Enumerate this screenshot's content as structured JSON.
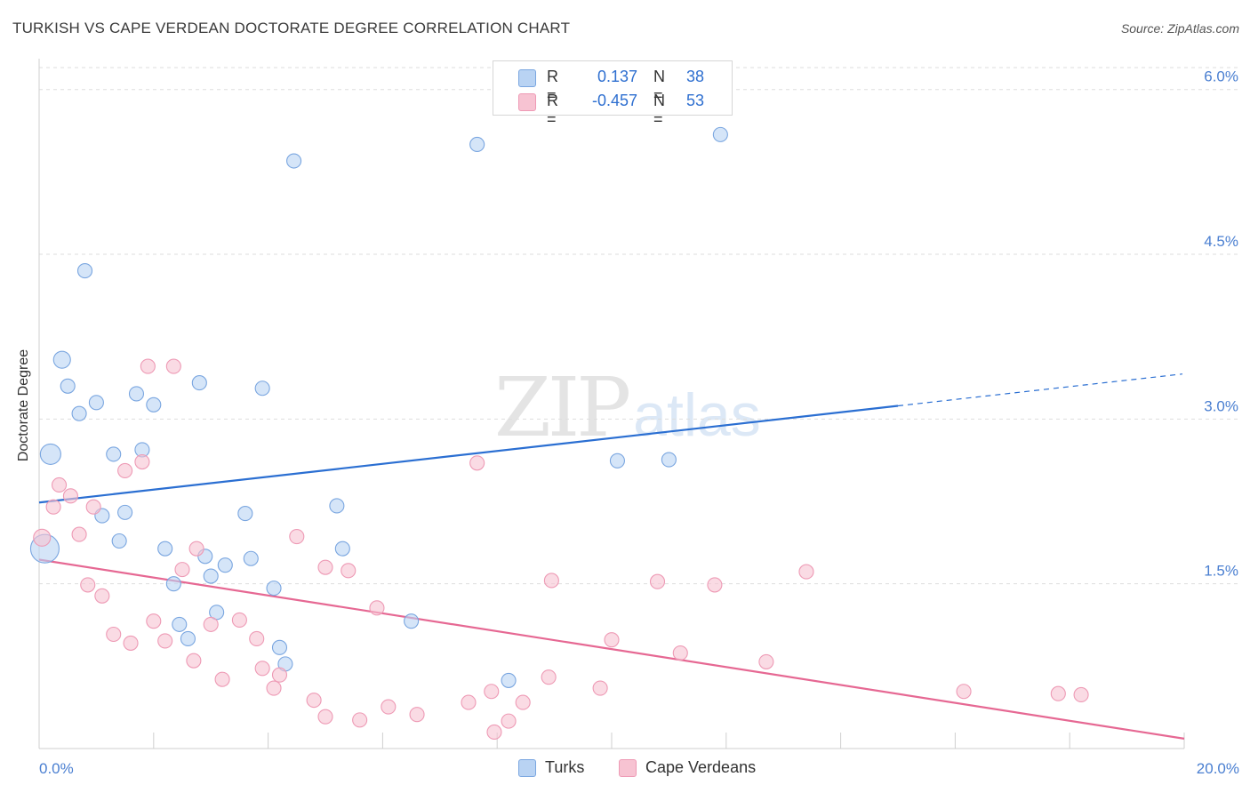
{
  "title": "TURKISH VS CAPE VERDEAN DOCTORATE DEGREE CORRELATION CHART",
  "source": "Source: ZipAtlas.com",
  "watermark": {
    "zip": "ZIP",
    "atlas": "atlas"
  },
  "colors": {
    "turks_fill": "#b9d3f3",
    "turks_stroke": "#7aa6e0",
    "turks_line": "#2b6fd2",
    "cape_fill": "#f7c3d2",
    "cape_stroke": "#ee9ab5",
    "cape_line": "#e66893",
    "tick_text": "#4a7fd1",
    "grid": "#dddddd"
  },
  "stats_legend": [
    {
      "r_label": "R =",
      "r_value": "0.137",
      "n_label": "N =",
      "n_value": "38",
      "color": "#b9d3f3",
      "border": "#7aa6e0"
    },
    {
      "r_label": "R =",
      "r_value": "-0.457",
      "n_label": "N =",
      "n_value": "53",
      "color": "#f7c3d2",
      "border": "#ee9ab5"
    }
  ],
  "legend": [
    {
      "label": "Turks",
      "color": "#b9d3f3",
      "border": "#7aa6e0"
    },
    {
      "label": "Cape Verdeans",
      "color": "#f7c3d2",
      "border": "#ee9ab5"
    }
  ],
  "chart_data": {
    "type": "scatter",
    "title": "TURKISH VS CAPE VERDEAN DOCTORATE DEGREE CORRELATION CHART",
    "xlabel": "",
    "ylabel": "Doctorate Degree",
    "xlim": [
      0,
      20
    ],
    "ylim": [
      0,
      6.2
    ],
    "x_tick_labels": [
      {
        "value": 0,
        "label": "0.0%"
      },
      {
        "value": 20,
        "label": "20.0%"
      }
    ],
    "y_tick_labels": [
      {
        "value": 1.5,
        "label": "1.5%"
      },
      {
        "value": 3.0,
        "label": "3.0%"
      },
      {
        "value": 4.5,
        "label": "4.5%"
      },
      {
        "value": 6.0,
        "label": "6.0%"
      }
    ],
    "legend_position": "bottom",
    "grid": true,
    "series": [
      {
        "name": "Turks",
        "trend": {
          "x0": 0,
          "y0": 2.24,
          "x1": 15.0,
          "y1": 3.12,
          "x_dash_end": 20,
          "y_dash_end": 3.41
        },
        "points": [
          {
            "x": 0.1,
            "y": 1.82,
            "s": 3
          },
          {
            "x": 0.2,
            "y": 2.68,
            "s": 2
          },
          {
            "x": 0.4,
            "y": 3.54,
            "s": 1.5
          },
          {
            "x": 0.5,
            "y": 3.3,
            "s": 1
          },
          {
            "x": 0.7,
            "y": 3.05,
            "s": 1
          },
          {
            "x": 0.8,
            "y": 4.35,
            "s": 1
          },
          {
            "x": 1.0,
            "y": 3.15,
            "s": 1
          },
          {
            "x": 1.1,
            "y": 2.12,
            "s": 1
          },
          {
            "x": 1.3,
            "y": 2.68,
            "s": 1
          },
          {
            "x": 1.4,
            "y": 1.89,
            "s": 1
          },
          {
            "x": 1.5,
            "y": 2.15,
            "s": 1
          },
          {
            "x": 1.7,
            "y": 3.23,
            "s": 1
          },
          {
            "x": 1.8,
            "y": 2.72,
            "s": 1
          },
          {
            "x": 2.0,
            "y": 3.13,
            "s": 1
          },
          {
            "x": 2.2,
            "y": 1.82,
            "s": 1
          },
          {
            "x": 2.35,
            "y": 1.5,
            "s": 1
          },
          {
            "x": 2.45,
            "y": 1.13,
            "s": 1
          },
          {
            "x": 2.6,
            "y": 1.0,
            "s": 1
          },
          {
            "x": 2.8,
            "y": 3.33,
            "s": 1
          },
          {
            "x": 2.9,
            "y": 1.75,
            "s": 1
          },
          {
            "x": 3.0,
            "y": 1.57,
            "s": 1
          },
          {
            "x": 3.1,
            "y": 1.24,
            "s": 1
          },
          {
            "x": 3.25,
            "y": 1.67,
            "s": 1
          },
          {
            "x": 3.6,
            "y": 2.14,
            "s": 1
          },
          {
            "x": 3.7,
            "y": 1.73,
            "s": 1
          },
          {
            "x": 3.9,
            "y": 3.28,
            "s": 1
          },
          {
            "x": 4.1,
            "y": 1.46,
            "s": 1
          },
          {
            "x": 4.2,
            "y": 0.92,
            "s": 1
          },
          {
            "x": 4.3,
            "y": 0.77,
            "s": 1
          },
          {
            "x": 4.45,
            "y": 5.35,
            "s": 1
          },
          {
            "x": 5.2,
            "y": 2.21,
            "s": 1
          },
          {
            "x": 5.3,
            "y": 1.82,
            "s": 1
          },
          {
            "x": 6.5,
            "y": 1.16,
            "s": 1
          },
          {
            "x": 7.65,
            "y": 5.5,
            "s": 1
          },
          {
            "x": 8.2,
            "y": 0.62,
            "s": 1
          },
          {
            "x": 10.1,
            "y": 2.62,
            "s": 1
          },
          {
            "x": 11.0,
            "y": 2.63,
            "s": 1
          },
          {
            "x": 11.9,
            "y": 5.59,
            "s": 1
          }
        ]
      },
      {
        "name": "Cape Verdeans",
        "trend": {
          "x0": 0,
          "y0": 1.72,
          "x1": 20,
          "y1": 0.09
        },
        "points": [
          {
            "x": 0.05,
            "y": 1.92,
            "s": 1.5
          },
          {
            "x": 0.25,
            "y": 2.2,
            "s": 1
          },
          {
            "x": 0.35,
            "y": 2.4,
            "s": 1
          },
          {
            "x": 0.55,
            "y": 2.3,
            "s": 1
          },
          {
            "x": 0.7,
            "y": 1.95,
            "s": 1
          },
          {
            "x": 0.85,
            "y": 1.49,
            "s": 1
          },
          {
            "x": 0.95,
            "y": 2.2,
            "s": 1
          },
          {
            "x": 1.1,
            "y": 1.39,
            "s": 1
          },
          {
            "x": 1.3,
            "y": 1.04,
            "s": 1
          },
          {
            "x": 1.5,
            "y": 2.53,
            "s": 1
          },
          {
            "x": 1.6,
            "y": 0.96,
            "s": 1
          },
          {
            "x": 1.8,
            "y": 2.61,
            "s": 1
          },
          {
            "x": 1.9,
            "y": 3.48,
            "s": 1
          },
          {
            "x": 2.0,
            "y": 1.16,
            "s": 1
          },
          {
            "x": 2.2,
            "y": 0.98,
            "s": 1
          },
          {
            "x": 2.35,
            "y": 3.48,
            "s": 1
          },
          {
            "x": 2.5,
            "y": 1.63,
            "s": 1
          },
          {
            "x": 2.7,
            "y": 0.8,
            "s": 1
          },
          {
            "x": 2.75,
            "y": 1.82,
            "s": 1
          },
          {
            "x": 3.0,
            "y": 1.13,
            "s": 1
          },
          {
            "x": 3.2,
            "y": 0.63,
            "s": 1
          },
          {
            "x": 3.5,
            "y": 1.17,
            "s": 1
          },
          {
            "x": 3.8,
            "y": 1.0,
            "s": 1
          },
          {
            "x": 3.9,
            "y": 0.73,
            "s": 1
          },
          {
            "x": 4.1,
            "y": 0.55,
            "s": 1
          },
          {
            "x": 4.2,
            "y": 0.67,
            "s": 1
          },
          {
            "x": 4.5,
            "y": 1.93,
            "s": 1
          },
          {
            "x": 4.8,
            "y": 0.44,
            "s": 1
          },
          {
            "x": 5.0,
            "y": 0.29,
            "s": 1
          },
          {
            "x": 5.0,
            "y": 1.65,
            "s": 1
          },
          {
            "x": 5.4,
            "y": 1.62,
            "s": 1
          },
          {
            "x": 5.6,
            "y": 0.26,
            "s": 1
          },
          {
            "x": 5.9,
            "y": 1.28,
            "s": 1
          },
          {
            "x": 6.1,
            "y": 0.38,
            "s": 1
          },
          {
            "x": 6.6,
            "y": 0.31,
            "s": 1
          },
          {
            "x": 7.5,
            "y": 0.42,
            "s": 1
          },
          {
            "x": 7.65,
            "y": 2.6,
            "s": 1
          },
          {
            "x": 7.9,
            "y": 0.52,
            "s": 1
          },
          {
            "x": 7.95,
            "y": 0.15,
            "s": 1
          },
          {
            "x": 8.2,
            "y": 0.25,
            "s": 1
          },
          {
            "x": 8.45,
            "y": 0.42,
            "s": 1
          },
          {
            "x": 8.9,
            "y": 0.65,
            "s": 1
          },
          {
            "x": 8.95,
            "y": 1.53,
            "s": 1
          },
          {
            "x": 9.8,
            "y": 0.55,
            "s": 1
          },
          {
            "x": 10.0,
            "y": 0.99,
            "s": 1
          },
          {
            "x": 10.8,
            "y": 1.52,
            "s": 1
          },
          {
            "x": 11.2,
            "y": 0.87,
            "s": 1
          },
          {
            "x": 11.8,
            "y": 1.49,
            "s": 1
          },
          {
            "x": 12.7,
            "y": 0.79,
            "s": 1
          },
          {
            "x": 13.4,
            "y": 1.61,
            "s": 1
          },
          {
            "x": 16.15,
            "y": 0.52,
            "s": 1
          },
          {
            "x": 17.8,
            "y": 0.5,
            "s": 1
          },
          {
            "x": 18.2,
            "y": 0.49,
            "s": 1
          }
        ]
      }
    ]
  }
}
